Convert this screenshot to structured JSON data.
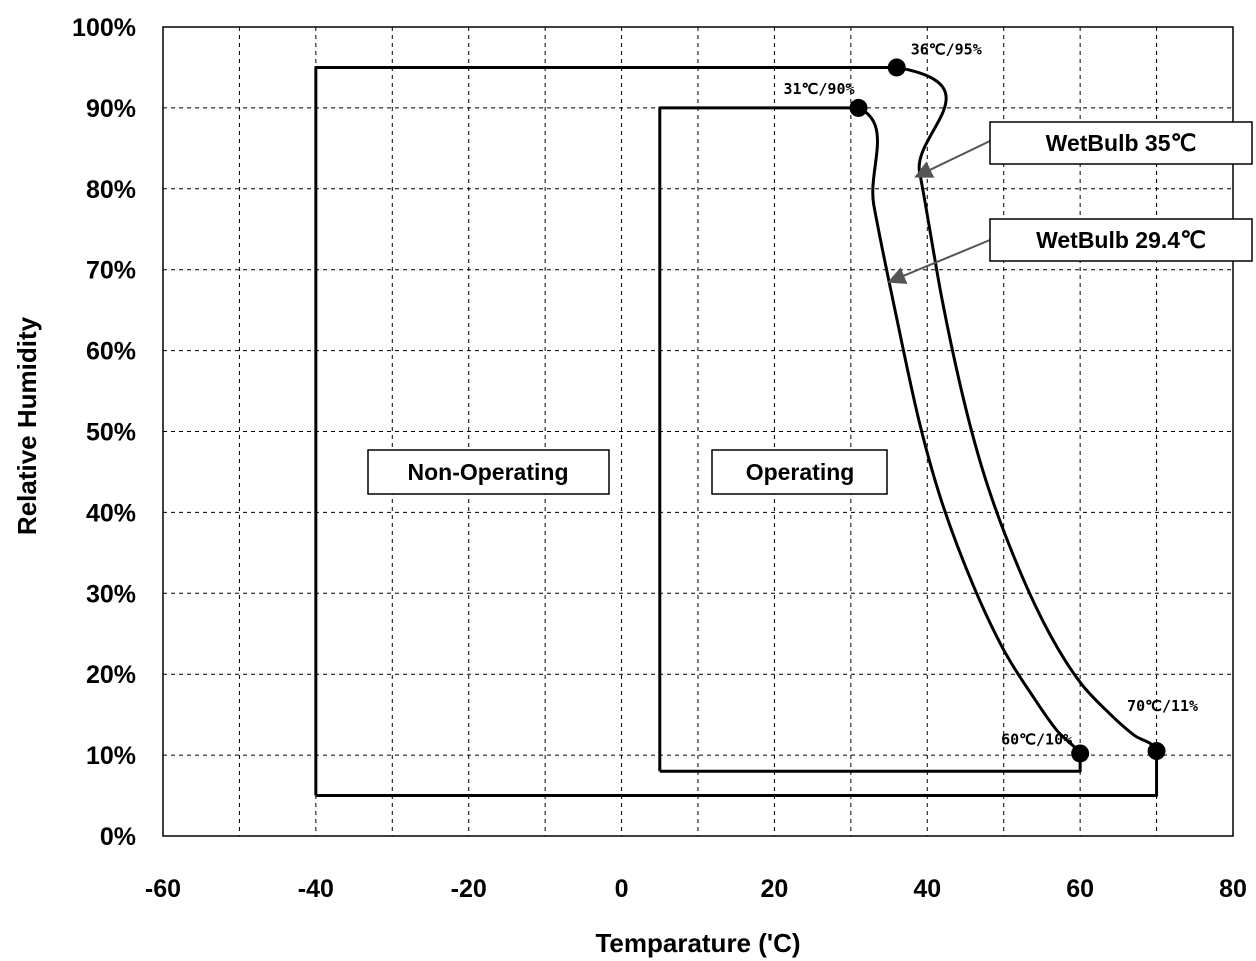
{
  "chart_data": {
    "type": "line",
    "xlabel": "Temparature ('C)",
    "ylabel": "Relative Humidity",
    "xlim": [
      -60,
      80
    ],
    "ylim": [
      0,
      100
    ],
    "x_ticks": [
      "-60",
      "-40",
      "-20",
      "0",
      "20",
      "40",
      "60",
      "80"
    ],
    "y_ticks": [
      "0%",
      "10%",
      "20%",
      "30%",
      "40%",
      "50%",
      "60%",
      "70%",
      "80%",
      "90%",
      "100%"
    ],
    "grid": true,
    "series": [
      {
        "name": "Non-Operating",
        "points": [
          [
            -40,
            5
          ],
          [
            -40,
            95
          ],
          [
            36,
            95
          ],
          [
            39,
            82
          ],
          [
            42,
            66
          ],
          [
            45,
            53
          ],
          [
            48,
            43
          ],
          [
            52,
            33
          ],
          [
            56,
            25
          ],
          [
            60,
            19
          ],
          [
            64,
            15
          ],
          [
            67,
            12.5
          ],
          [
            70,
            10.5
          ],
          [
            70,
            5
          ],
          [
            -40,
            5
          ]
        ]
      },
      {
        "name": "Operating",
        "points": [
          [
            5,
            8
          ],
          [
            5,
            90
          ],
          [
            31,
            90
          ],
          [
            33,
            78
          ],
          [
            36,
            64
          ],
          [
            39,
            51
          ],
          [
            42,
            41
          ],
          [
            46,
            31
          ],
          [
            50,
            23
          ],
          [
            54,
            17
          ],
          [
            57,
            13
          ],
          [
            60,
            10.2
          ],
          [
            60,
            8
          ],
          [
            5,
            8
          ]
        ]
      }
    ],
    "markers": [
      {
        "x": 36,
        "y": 95,
        "label": "36℃/95%"
      },
      {
        "x": 31,
        "y": 90,
        "label": "31℃/90%"
      },
      {
        "x": 60,
        "y": 10.2,
        "label": "60℃/10%"
      },
      {
        "x": 70,
        "y": 10.5,
        "label": "70℃/11%"
      }
    ],
    "annotations": [
      {
        "text": "WetBulb 35℃",
        "arrow_to": [
          38.5,
          81.5
        ]
      },
      {
        "text": "WetBulb 29.4℃",
        "arrow_to": [
          35,
          68.5
        ]
      }
    ],
    "region_labels": [
      "Non-Operating",
      "Operating"
    ]
  }
}
